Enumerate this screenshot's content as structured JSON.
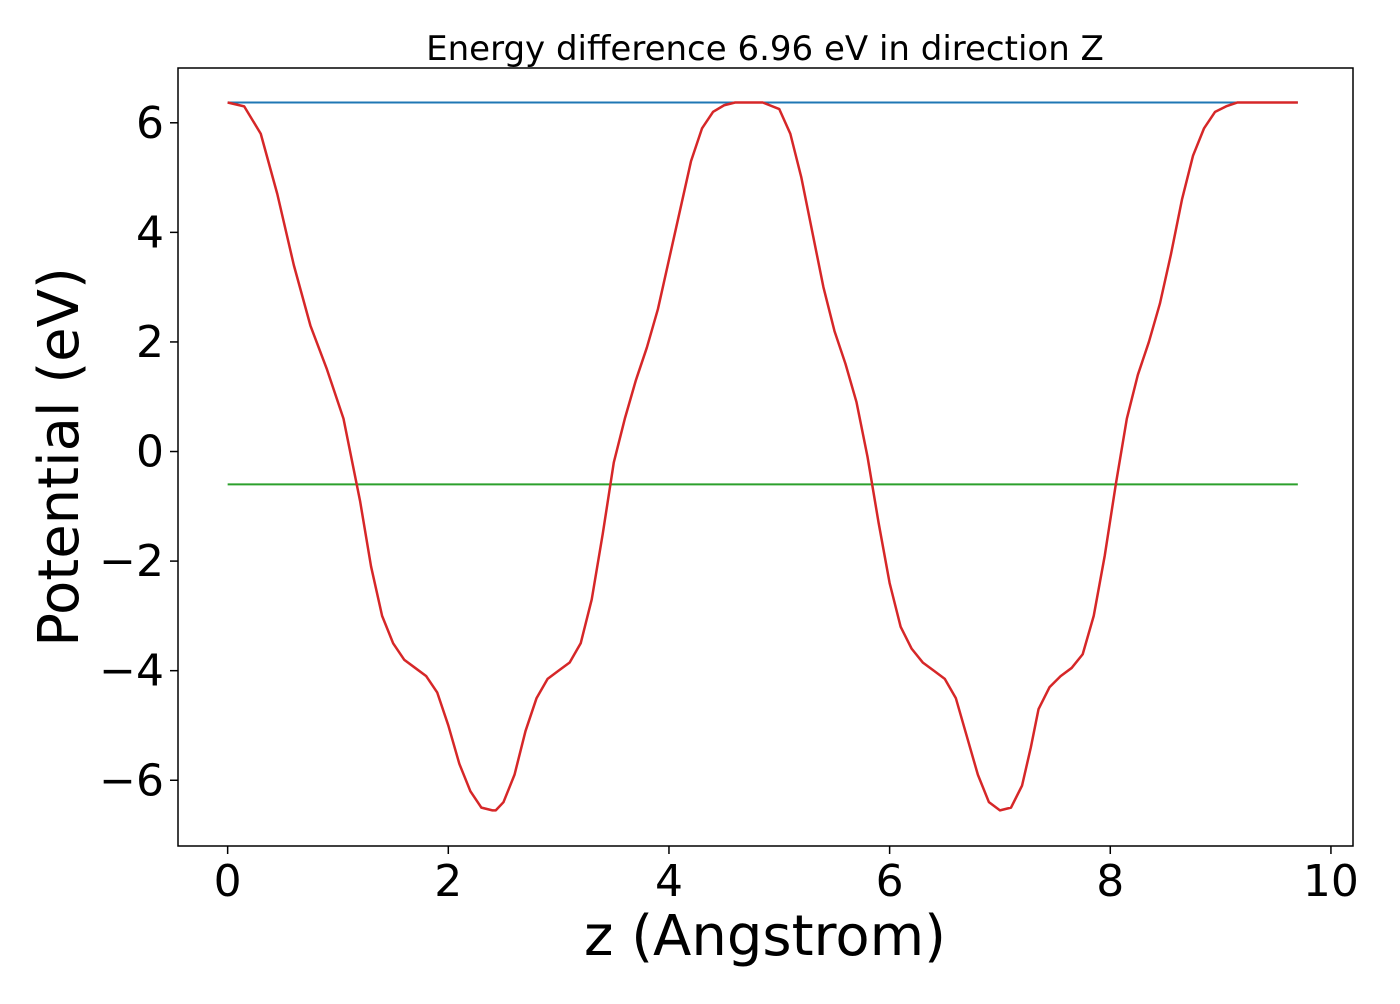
{
  "chart_data": {
    "type": "line",
    "title": "Energy difference 6.96 eV in direction Z",
    "xlabel": "z (Angstrom)",
    "ylabel": "Potential (eV)",
    "xlim": [
      -0.45,
      10.2
    ],
    "ylim": [
      -7.2,
      7.0
    ],
    "xticks": [
      0,
      2,
      4,
      6,
      8,
      10
    ],
    "xtick_labels": [
      "0",
      "2",
      "4",
      "6",
      "8",
      "10"
    ],
    "yticks": [
      -6,
      -4,
      -2,
      0,
      2,
      4,
      6
    ],
    "ytick_labels": [
      "−6",
      "−4",
      "−2",
      "0",
      "2",
      "4",
      "6"
    ],
    "grid": false,
    "series": [
      {
        "color": "#1f77b4",
        "x": [
          0,
          9.7
        ],
        "y": [
          6.37,
          6.37
        ]
      },
      {
        "color": "#2ca02c",
        "x": [
          0,
          9.7
        ],
        "y": [
          -0.6,
          -0.6
        ]
      },
      {
        "color": "#d62728",
        "x": [
          0,
          0.15,
          0.3,
          0.45,
          0.6,
          0.75,
          0.9,
          1.05,
          1.2,
          1.3,
          1.4,
          1.5,
          1.6,
          1.7,
          1.8,
          1.9,
          2.0,
          2.1,
          2.2,
          2.3,
          2.4,
          2.43,
          2.5,
          2.6,
          2.7,
          2.8,
          2.9,
          3.0,
          3.1,
          3.2,
          3.3,
          3.4,
          3.5,
          3.6,
          3.7,
          3.8,
          3.9,
          4.0,
          4.1,
          4.2,
          4.3,
          4.4,
          4.5,
          4.6,
          4.7,
          4.85,
          5.0,
          5.1,
          5.2,
          5.3,
          5.4,
          5.5,
          5.6,
          5.7,
          5.8,
          5.9,
          6.0,
          6.1,
          6.2,
          6.3,
          6.4,
          6.5,
          6.6,
          6.7,
          6.8,
          6.9,
          7.0,
          7.1,
          7.2,
          7.28,
          7.35,
          7.45,
          7.55,
          7.65,
          7.75,
          7.85,
          7.95,
          8.05,
          8.15,
          8.25,
          8.35,
          8.45,
          8.55,
          8.65,
          8.75,
          8.85,
          8.95,
          9.05,
          9.15,
          9.25,
          9.35,
          9.45,
          9.55,
          9.7
        ],
        "y": [
          6.37,
          6.3,
          5.8,
          4.7,
          3.4,
          2.3,
          1.5,
          0.6,
          -0.9,
          -2.1,
          -3.0,
          -3.5,
          -3.8,
          -3.95,
          -4.1,
          -4.4,
          -5.0,
          -5.7,
          -6.2,
          -6.5,
          -6.55,
          -6.55,
          -6.4,
          -5.9,
          -5.1,
          -4.5,
          -4.15,
          -4.0,
          -3.85,
          -3.5,
          -2.7,
          -1.5,
          -0.2,
          0.6,
          1.3,
          1.9,
          2.6,
          3.5,
          4.4,
          5.3,
          5.9,
          6.2,
          6.32,
          6.37,
          6.37,
          6.37,
          6.25,
          5.8,
          5.0,
          4.0,
          3.0,
          2.2,
          1.6,
          0.9,
          -0.1,
          -1.3,
          -2.4,
          -3.2,
          -3.6,
          -3.85,
          -4.0,
          -4.15,
          -4.5,
          -5.2,
          -5.9,
          -6.4,
          -6.55,
          -6.5,
          -6.1,
          -5.4,
          -4.7,
          -4.3,
          -4.1,
          -3.95,
          -3.7,
          -3.0,
          -1.9,
          -0.6,
          0.6,
          1.4,
          2.0,
          2.7,
          3.6,
          4.6,
          5.4,
          5.9,
          6.2,
          6.3,
          6.37,
          6.37,
          6.37,
          6.37,
          6.37,
          6.37
        ]
      }
    ]
  }
}
